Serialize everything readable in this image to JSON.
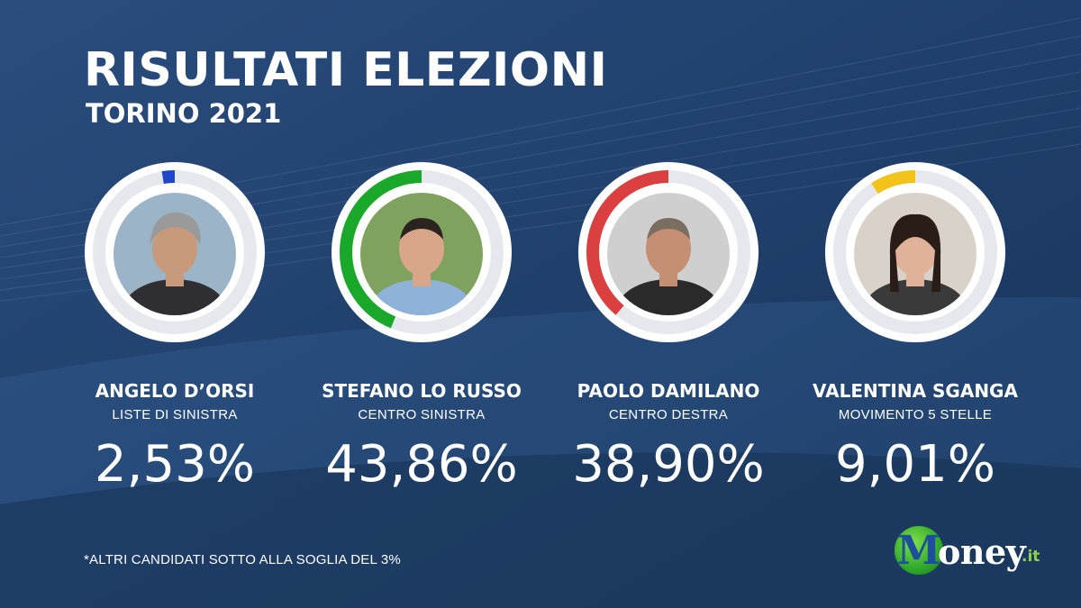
{
  "header": {
    "title": "RISULTATI ELEZIONI",
    "subtitle": "TORINO 2021"
  },
  "candidates": [
    {
      "name": "ANGELO D’ORSI",
      "party": "LISTE DI SINISTRA",
      "percent_label": "2,53%",
      "percent": 2.53,
      "color": "#1f47c9"
    },
    {
      "name": "STEFANO LO RUSSO",
      "party": "CENTRO SINISTRA",
      "percent_label": "43,86%",
      "percent": 43.86,
      "color": "#1aa82a"
    },
    {
      "name": "PAOLO DAMILANO",
      "party": "CENTRO DESTRA",
      "percent_label": "38,90%",
      "percent": 38.9,
      "color": "#d9403f"
    },
    {
      "name": "VALENTINA SGANGA",
      "party": "MOVIMENTO 5 STELLE",
      "percent_label": "9,01%",
      "percent": 9.01,
      "color": "#f2c318"
    }
  ],
  "footnote": "*ALTRI CANDIDATI SOTTO ALLA SOGLIA DEL 3%",
  "logo": {
    "initial": "M",
    "word": "oney",
    "tld": ".it"
  },
  "colors": {
    "background": "#1f3f6b",
    "ring_track": "#e6e8ed",
    "ring_outer": "#ffffff"
  }
}
